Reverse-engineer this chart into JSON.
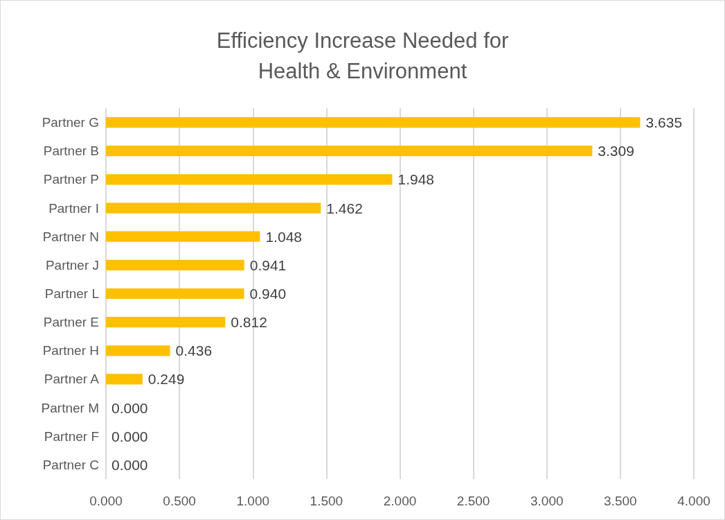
{
  "chart_data": {
    "type": "bar",
    "orientation": "horizontal",
    "title": "Efficiency Increase Needed for\nHealth & Environment",
    "categories": [
      "Partner G",
      "Partner B",
      "Partner P",
      "Partner I",
      "Partner N",
      "Partner J",
      "Partner L",
      "Partner E",
      "Partner H",
      "Partner A",
      "Partner M",
      "Partner F",
      "Partner C"
    ],
    "values": [
      3.635,
      3.309,
      1.948,
      1.462,
      1.048,
      0.941,
      0.94,
      0.812,
      0.436,
      0.249,
      0,
      0,
      0
    ],
    "value_labels": [
      "3.635",
      "3.309",
      "1.948",
      "1.462",
      "1.048",
      "0.941",
      "0.940",
      "0.812",
      "0.436",
      "0.249",
      "0.000",
      "0.000",
      "0.000"
    ],
    "color": "#ffc000",
    "xlim": [
      0,
      4
    ],
    "xticks": [
      {
        "value": 0,
        "label": "0.000"
      },
      {
        "value": 0.5,
        "label": "0.500"
      },
      {
        "value": 1,
        "label": "1.000"
      },
      {
        "value": 1.5,
        "label": "1.500"
      },
      {
        "value": 2,
        "label": "2.000"
      },
      {
        "value": 2.5,
        "label": "2.500"
      },
      {
        "value": 3,
        "label": "3.000"
      },
      {
        "value": 3.5,
        "label": "3.500"
      },
      {
        "value": 4,
        "label": "4.000"
      }
    ],
    "grid": "x"
  }
}
